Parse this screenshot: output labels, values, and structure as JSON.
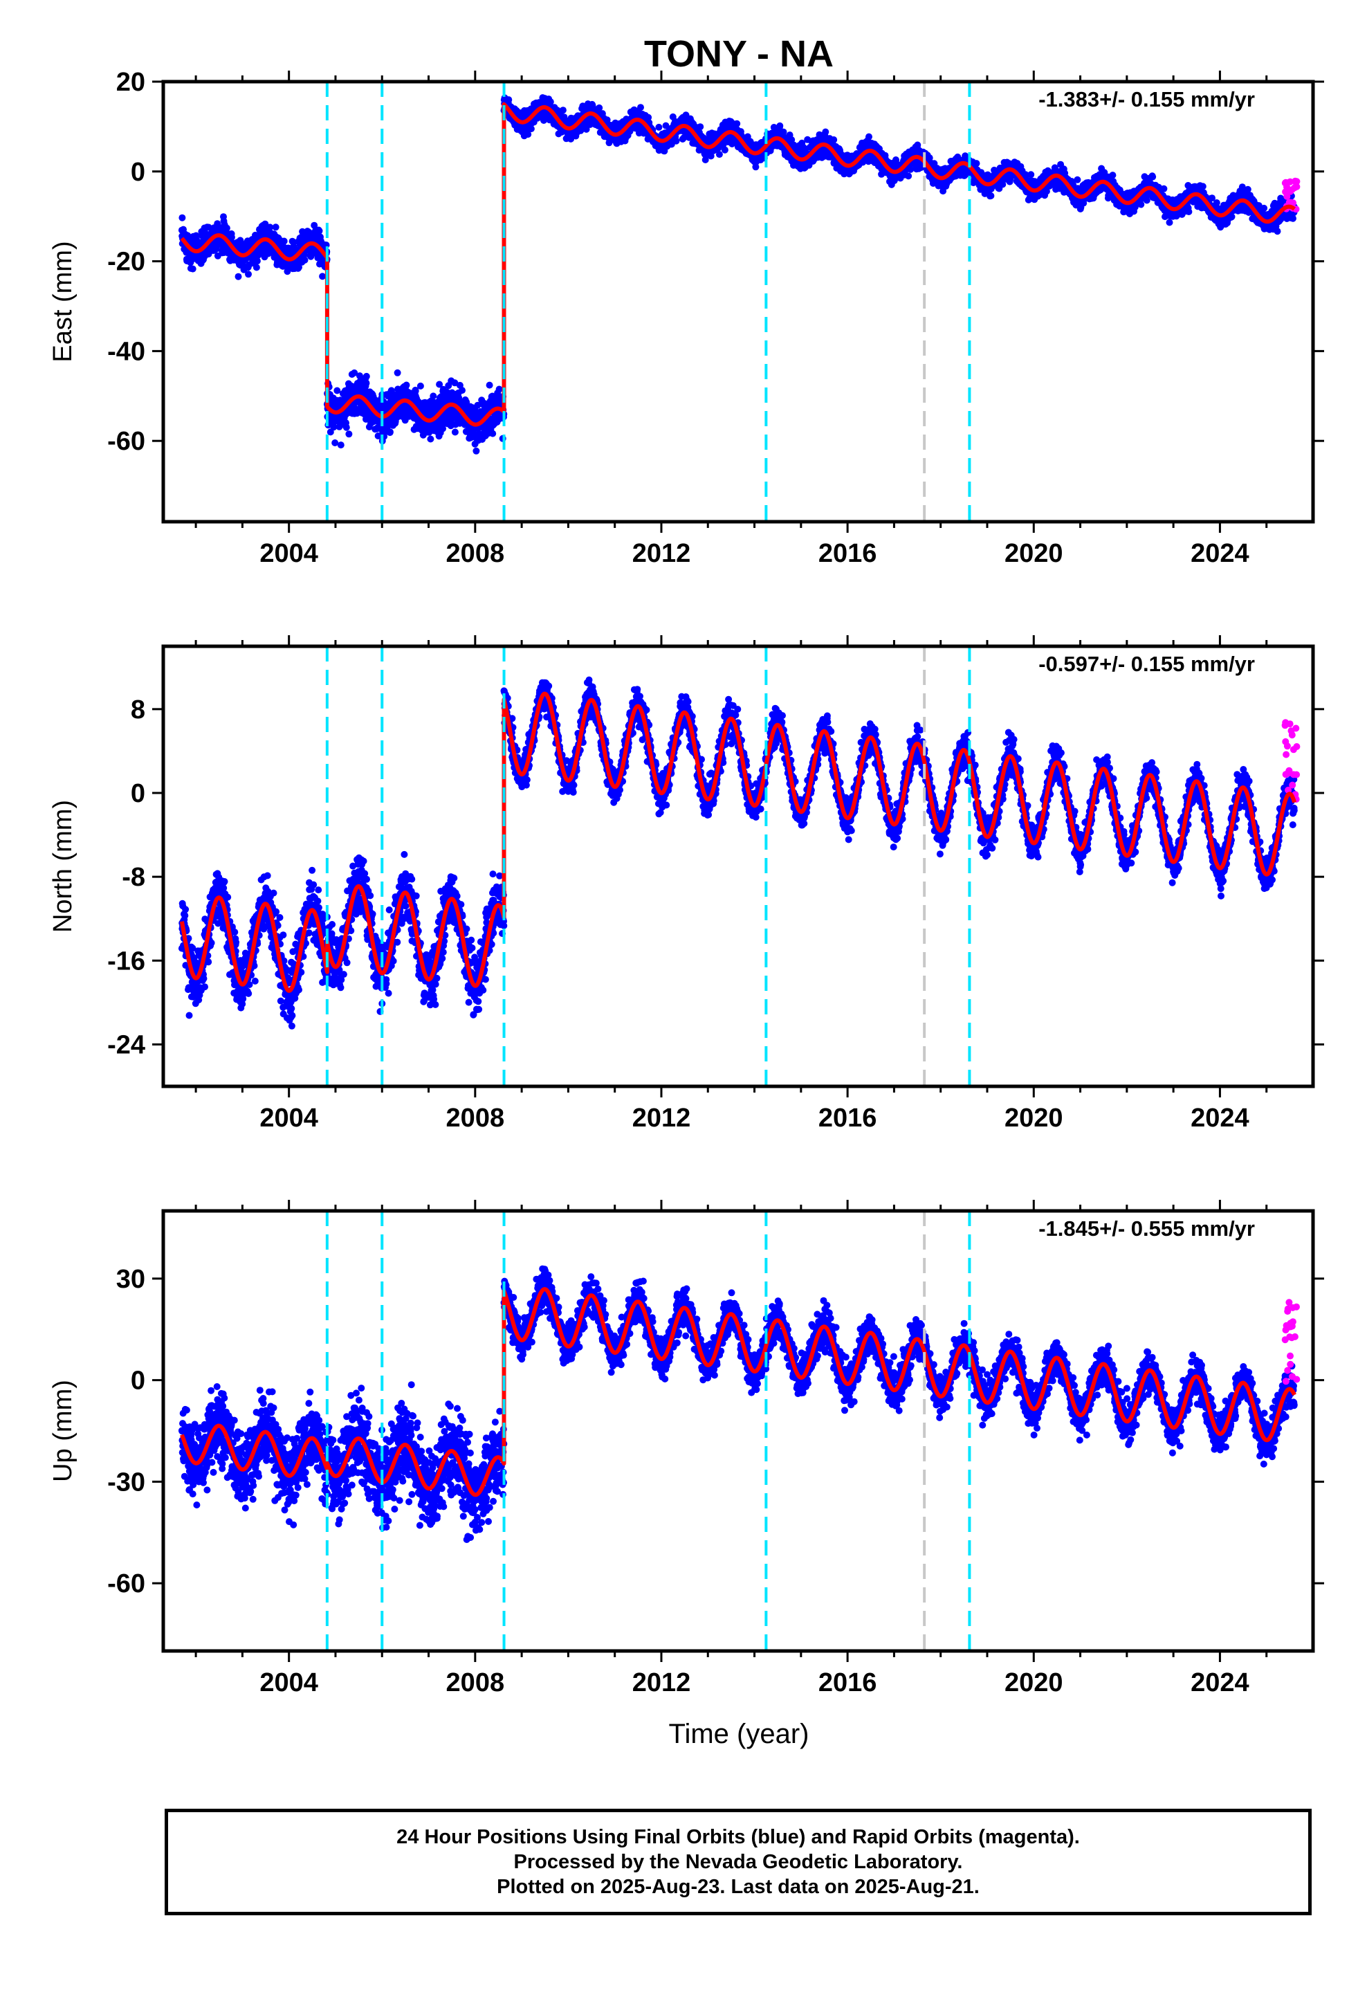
{
  "chart_data": [
    {
      "type": "scatter",
      "panel": "east",
      "title": "TONY - NA",
      "ylabel": "East (mm)",
      "xlabel": "",
      "rate_label": "-1.383+/- 0.155 mm/yr",
      "xlim": [
        2001.3,
        2026.0
      ],
      "ylim": [
        -78,
        20
      ],
      "x_ticks": [
        2004,
        2008,
        2012,
        2016,
        2020,
        2024
      ],
      "y_ticks": [
        20,
        0,
        -20,
        -40,
        -60
      ],
      "grid": false,
      "colors": {
        "final": "#0000ff",
        "rapid": "#ff00ff",
        "model": "#ff0000",
        "offset_line": "#00e5ff",
        "equipment_line": "#c8c8c8"
      },
      "offset_lines": [
        2004.82,
        2006.0,
        2008.62,
        2014.25,
        2018.62
      ],
      "equipment_lines": [
        2017.65
      ],
      "segments": [
        {
          "start": 2001.7,
          "end": 2004.82,
          "intercept": -15.5,
          "slope": -0.9,
          "amplitude": 2.0,
          "scatter": 3.0
        },
        {
          "start": 2004.82,
          "end": 2008.62,
          "intercept": -51.5,
          "slope": -0.9,
          "amplitude": 2.0,
          "scatter": 4.0
        },
        {
          "start": 2008.62,
          "end": 2025.6,
          "intercept": 13.5,
          "slope": -1.383,
          "amplitude": 2.0,
          "scatter": 2.0
        }
      ],
      "rapid": {
        "start": 2025.4,
        "end": 2025.65,
        "center": -5,
        "spread": 4
      },
      "annotations": []
    },
    {
      "type": "scatter",
      "panel": "north",
      "title": "",
      "ylabel": "North (mm)",
      "xlabel": "",
      "rate_label": "-0.597+/- 0.155 mm/yr",
      "xlim": [
        2001.3,
        2026.0
      ],
      "ylim": [
        -28,
        14
      ],
      "x_ticks": [
        2004,
        2008,
        2012,
        2016,
        2020,
        2024
      ],
      "y_ticks": [
        8,
        0,
        -8,
        -16,
        -24
      ],
      "grid": false,
      "colors": {
        "final": "#0000ff",
        "rapid": "#ff00ff",
        "model": "#ff0000",
        "offset_line": "#00e5ff",
        "equipment_line": "#c8c8c8"
      },
      "offset_lines": [
        2004.82,
        2006.0,
        2008.62,
        2014.25,
        2018.62
      ],
      "equipment_lines": [
        2017.65
      ],
      "segments": [
        {
          "start": 2001.7,
          "end": 2004.82,
          "intercept": -13.5,
          "slope": -0.6,
          "amplitude": 4.0,
          "scatter": 2.5
        },
        {
          "start": 2004.82,
          "end": 2008.62,
          "intercept": -12.5,
          "slope": -0.6,
          "amplitude": 4.0,
          "scatter": 2.5
        },
        {
          "start": 2008.62,
          "end": 2025.6,
          "intercept": 6.0,
          "slope": -0.597,
          "amplitude": 4.0,
          "scatter": 1.5
        }
      ],
      "rapid": {
        "start": 2025.4,
        "end": 2025.65,
        "center": 3,
        "spread": 4
      },
      "annotations": []
    },
    {
      "type": "scatter",
      "panel": "up",
      "title": "",
      "ylabel": "Up (mm)",
      "xlabel": "Time (year)",
      "rate_label": "-1.845+/- 0.555 mm/yr",
      "xlim": [
        2001.3,
        2026.0
      ],
      "ylim": [
        -80,
        50
      ],
      "x_ticks": [
        2004,
        2008,
        2012,
        2016,
        2020,
        2024
      ],
      "y_ticks": [
        30,
        0,
        -30,
        -60
      ],
      "grid": false,
      "colors": {
        "final": "#0000ff",
        "rapid": "#ff00ff",
        "model": "#ff0000",
        "offset_line": "#00e5ff",
        "equipment_line": "#c8c8c8"
      },
      "offset_lines": [
        2004.82,
        2006.0,
        2008.62,
        2014.25,
        2018.62
      ],
      "equipment_lines": [
        2017.65
      ],
      "segments": [
        {
          "start": 2001.7,
          "end": 2004.82,
          "intercept": -18.0,
          "slope": -1.845,
          "amplitude": 6.0,
          "scatter": 9.0
        },
        {
          "start": 2004.82,
          "end": 2008.62,
          "intercept": -22.0,
          "slope": -1.845,
          "amplitude": 6.0,
          "scatter": 11.0
        },
        {
          "start": 2008.62,
          "end": 2025.6,
          "intercept": 20.5,
          "slope": -1.845,
          "amplitude": 8.0,
          "scatter": 5.0
        }
      ],
      "rapid": {
        "start": 2025.4,
        "end": 2025.65,
        "center": 10,
        "spread": 13
      },
      "annotations": []
    }
  ],
  "footer": {
    "line1": "24 Hour Positions Using Final Orbits (blue) and Rapid Orbits (magenta).",
    "line2": "Processed by the Nevada Geodetic Laboratory.",
    "line3": "Plotted on 2025-Aug-23. Last data on 2025-Aug-21."
  }
}
